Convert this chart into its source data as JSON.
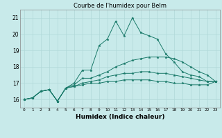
{
  "title": "Courbe de l'humidex pour Belm",
  "xlabel": "Humidex (Indice chaleur)",
  "ylabel": "",
  "background_color": "#c8eaea",
  "grid_color": "#b0d8d8",
  "line_color": "#1a7a6a",
  "x": [
    0,
    1,
    2,
    3,
    4,
    5,
    6,
    7,
    8,
    9,
    10,
    11,
    12,
    13,
    14,
    15,
    16,
    17,
    18,
    19,
    20,
    21,
    22,
    23
  ],
  "lines": [
    [
      16.0,
      16.1,
      16.5,
      16.6,
      15.9,
      16.7,
      17.0,
      17.8,
      17.8,
      19.3,
      19.7,
      20.8,
      19.9,
      21.0,
      20.1,
      19.9,
      19.7,
      18.8,
      18.3,
      17.7,
      17.5,
      17.4,
      17.1,
      17.1
    ],
    [
      16.0,
      16.1,
      16.5,
      16.6,
      15.9,
      16.7,
      16.9,
      17.3,
      17.3,
      17.5,
      17.7,
      18.0,
      18.2,
      18.4,
      18.5,
      18.6,
      18.6,
      18.6,
      18.5,
      18.3,
      18.0,
      17.7,
      17.5,
      17.1
    ],
    [
      16.0,
      16.1,
      16.5,
      16.6,
      15.9,
      16.7,
      16.8,
      17.0,
      17.1,
      17.2,
      17.4,
      17.5,
      17.6,
      17.6,
      17.7,
      17.7,
      17.6,
      17.6,
      17.5,
      17.4,
      17.3,
      17.2,
      17.1,
      17.1
    ],
    [
      16.0,
      16.1,
      16.5,
      16.6,
      15.9,
      16.7,
      16.8,
      16.9,
      17.0,
      17.0,
      17.1,
      17.1,
      17.2,
      17.2,
      17.2,
      17.2,
      17.1,
      17.1,
      17.0,
      17.0,
      16.9,
      16.9,
      16.9,
      17.1
    ]
  ],
  "ylim": [
    15.5,
    21.5
  ],
  "yticks": [
    16,
    17,
    18,
    19,
    20,
    21
  ],
  "xticks": [
    0,
    1,
    2,
    3,
    4,
    5,
    6,
    7,
    8,
    9,
    10,
    11,
    12,
    13,
    14,
    15,
    16,
    17,
    18,
    19,
    20,
    21,
    22,
    23
  ],
  "marker": "*",
  "markersize": 2.5,
  "linewidth": 0.7
}
